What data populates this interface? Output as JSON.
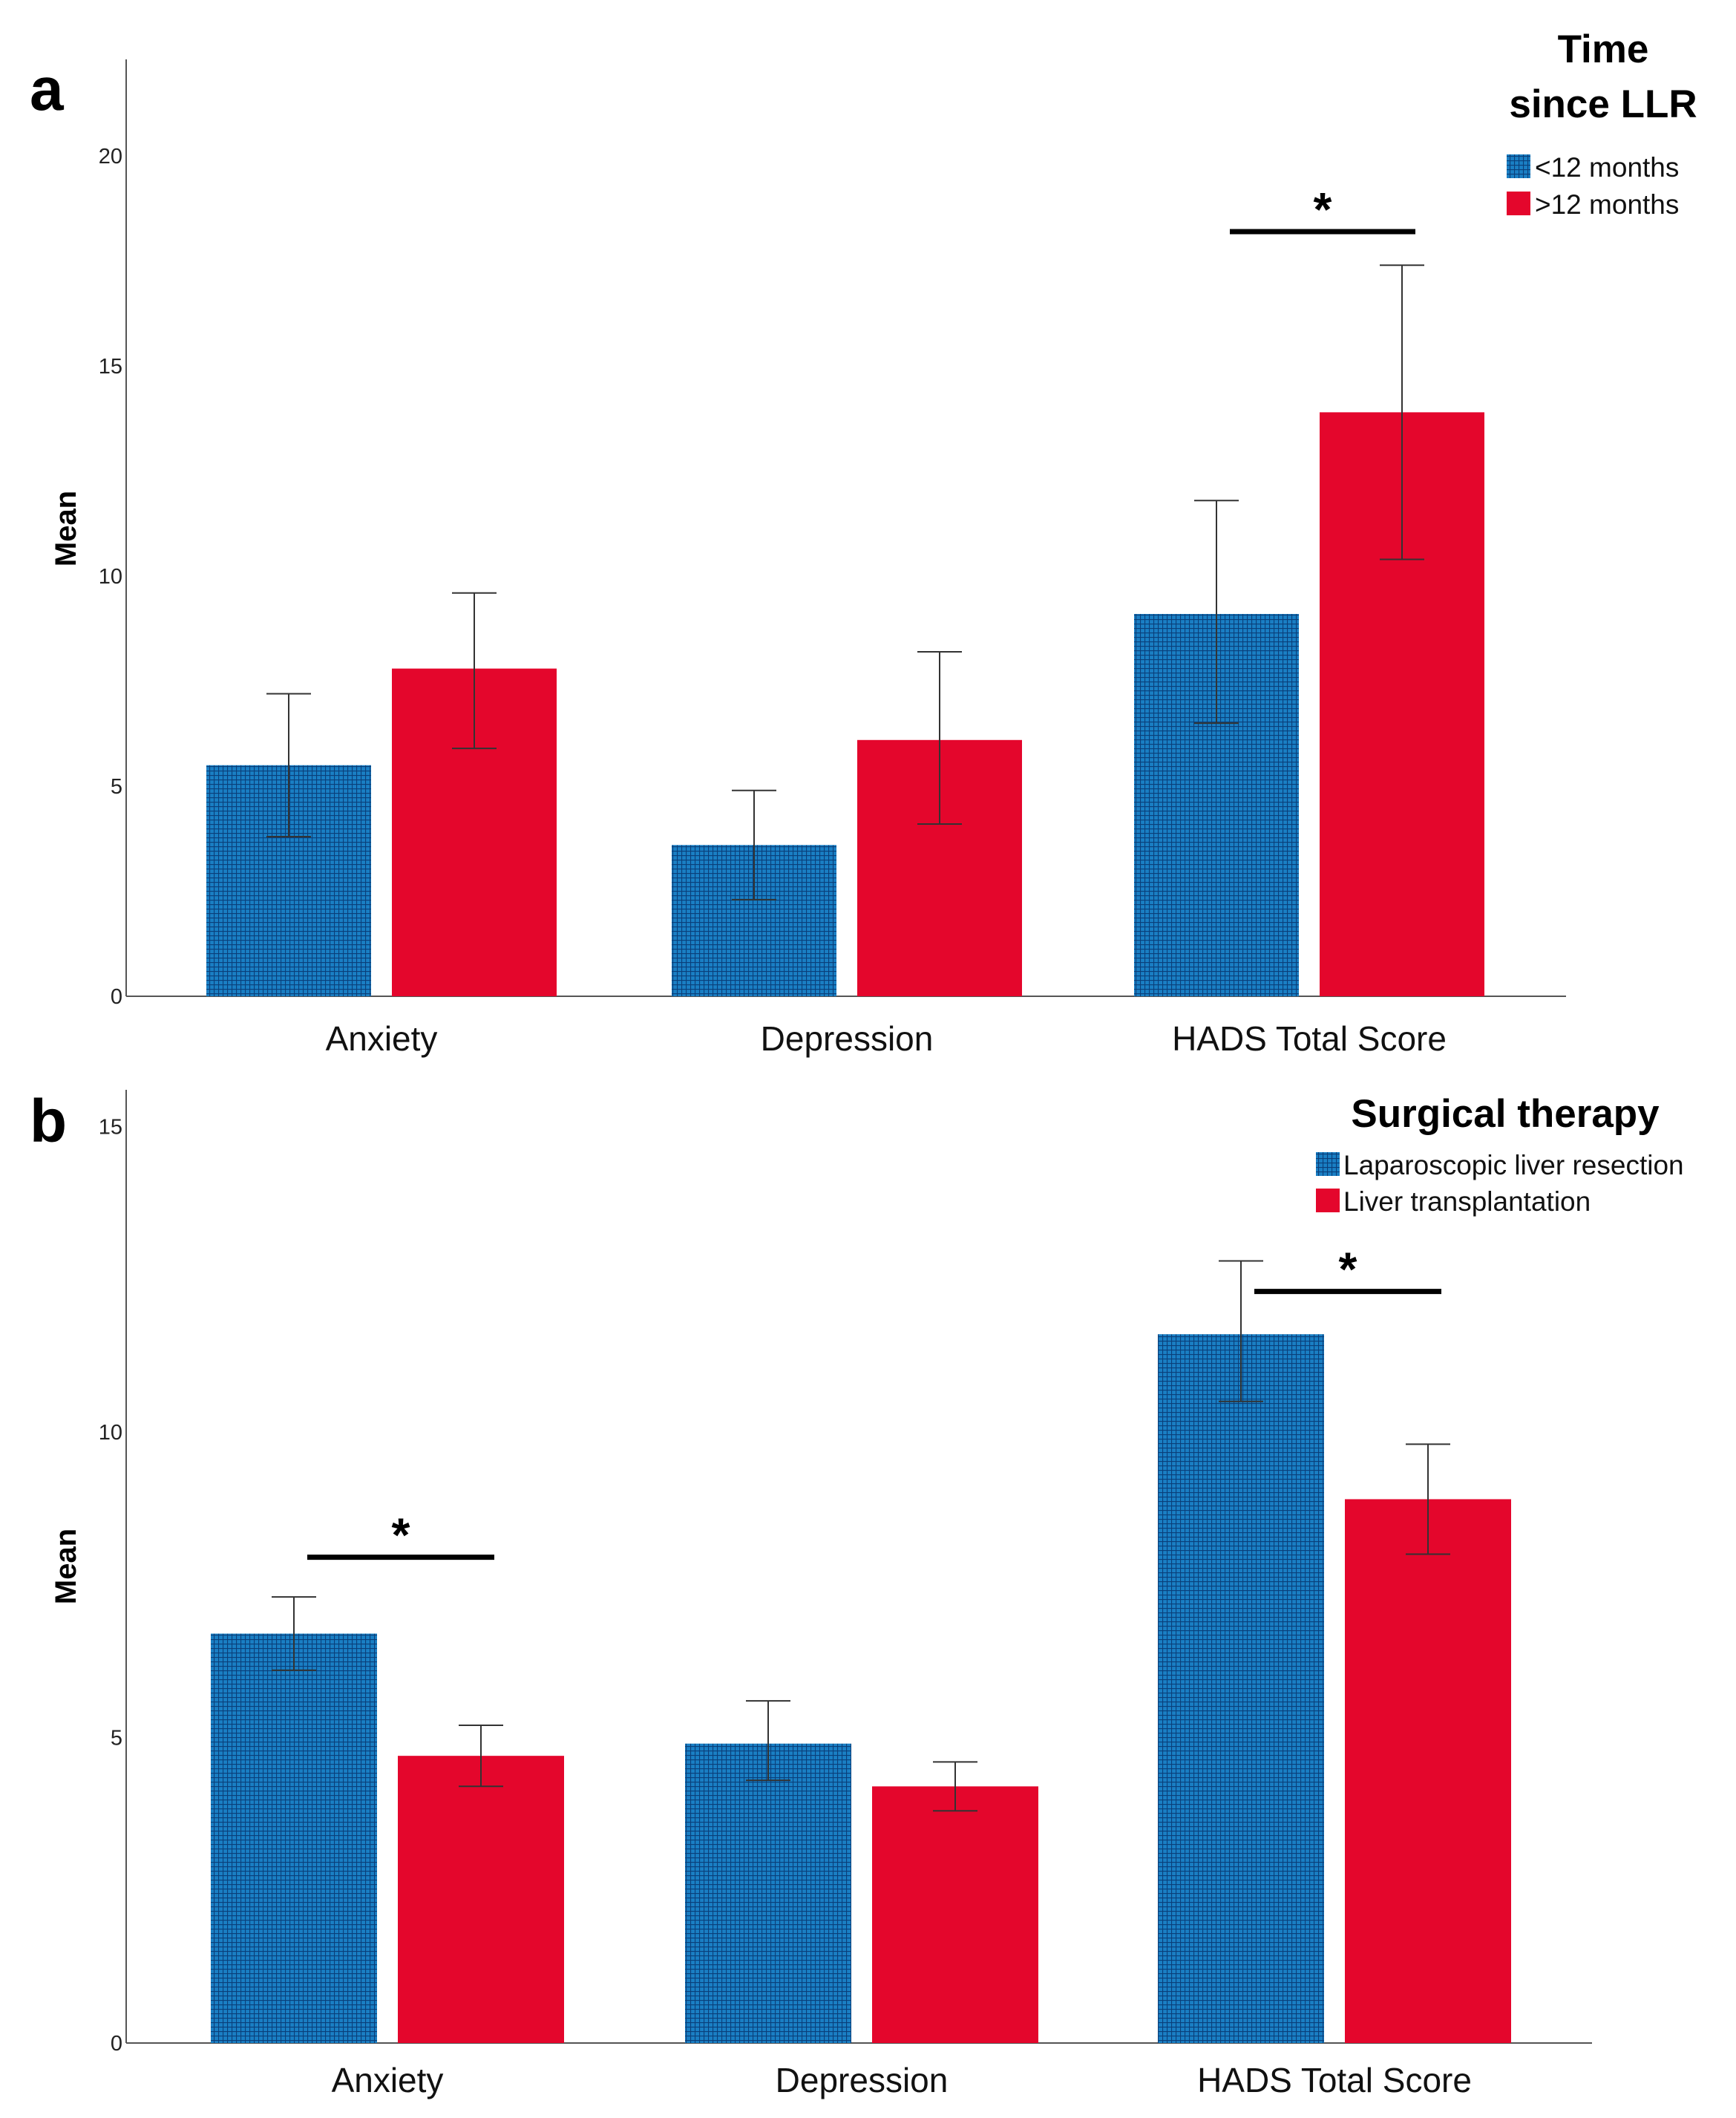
{
  "colors": {
    "series1": "#1a7fc4",
    "series1_grid": "#0a3f7a",
    "series2": "#e4062c",
    "axis": "#555555",
    "errorbar": "#333333",
    "sigbar": "#000000"
  },
  "chart_data": [
    {
      "panel": "a",
      "type": "bar",
      "ylabel": "Mean",
      "ylim": [
        0,
        22
      ],
      "yticks": [
        0,
        5,
        10,
        15,
        20
      ],
      "categories": [
        "Anxiety",
        "Depression",
        "HADS Total Score"
      ],
      "legend": {
        "title_lines": [
          "Time",
          "since LLR"
        ],
        "placement": "top-right"
      },
      "series": [
        {
          "name": "<12 months",
          "values": [
            5.5,
            3.6,
            9.1
          ],
          "err_low": [
            3.8,
            2.3,
            6.5
          ],
          "err_high": [
            7.2,
            4.9,
            11.8
          ]
        },
        {
          "name": ">12 months",
          "values": [
            7.8,
            6.1,
            13.9
          ],
          "err_low": [
            5.9,
            4.1,
            10.4
          ],
          "err_high": [
            9.6,
            8.2,
            17.4
          ]
        }
      ],
      "significance": [
        {
          "category_index": 2,
          "label": "*",
          "y": 18.2
        }
      ]
    },
    {
      "panel": "b",
      "type": "bar",
      "ylabel": "Mean",
      "ylim": [
        0,
        15.6
      ],
      "yticks": [
        0,
        5,
        10,
        15
      ],
      "categories": [
        "Anxiety",
        "Depression",
        "HADS Total Score"
      ],
      "legend": {
        "title_lines": [
          "Surgical therapy"
        ],
        "placement": "top-right"
      },
      "series": [
        {
          "name": "Laparoscopic liver resection",
          "values": [
            6.7,
            4.9,
            11.6
          ],
          "err_low": [
            6.1,
            4.3,
            10.5
          ],
          "err_high": [
            7.3,
            5.6,
            12.8
          ]
        },
        {
          "name": "Liver transplantation",
          "values": [
            4.7,
            4.2,
            8.9
          ],
          "err_low": [
            4.2,
            3.8,
            8.0
          ],
          "err_high": [
            5.2,
            4.6,
            9.8
          ]
        }
      ],
      "significance": [
        {
          "category_index": 0,
          "label": "*",
          "y": 7.95
        },
        {
          "category_index": 2,
          "label": "*",
          "y": 12.3
        }
      ]
    }
  ]
}
